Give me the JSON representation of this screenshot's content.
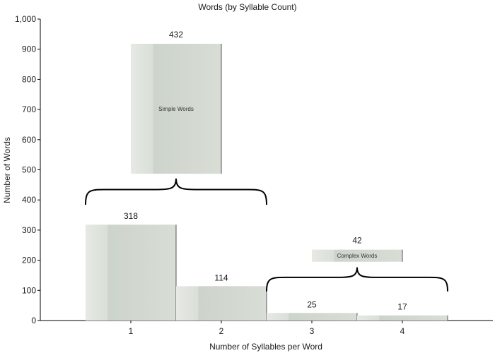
{
  "chart_data": {
    "type": "bar",
    "title": "Words (by Syllable Count)",
    "xlabel": "Number of Syllables per Word",
    "ylabel": "Number of Words",
    "ylim": [
      0,
      1000
    ],
    "yticks": [
      "0",
      "100",
      "200",
      "300",
      "400",
      "500",
      "600",
      "700",
      "800",
      "900",
      "1,000"
    ],
    "ytick_values": [
      0,
      100,
      200,
      300,
      400,
      500,
      600,
      700,
      800,
      900,
      1000
    ],
    "categories": [
      "1",
      "2",
      "3",
      "4"
    ],
    "values": [
      318,
      114,
      25,
      17
    ],
    "value_labels": [
      "318",
      "114",
      "25",
      "17"
    ],
    "groups": [
      {
        "name": "Simple Words",
        "total": 432,
        "total_label": "432",
        "covers": [
          "1",
          "2"
        ],
        "box_range": [
          487,
          918
        ]
      },
      {
        "name": "Complex Words",
        "total": 42,
        "total_label": "42",
        "covers": [
          "3",
          "4"
        ],
        "box_range": [
          195,
          235
        ]
      }
    ],
    "grid": false,
    "colors": {
      "bar_light": "#e2e6e0",
      "bar_main": "#ccd3ca",
      "bar_edge": "#555555",
      "axis": "#000000"
    }
  }
}
